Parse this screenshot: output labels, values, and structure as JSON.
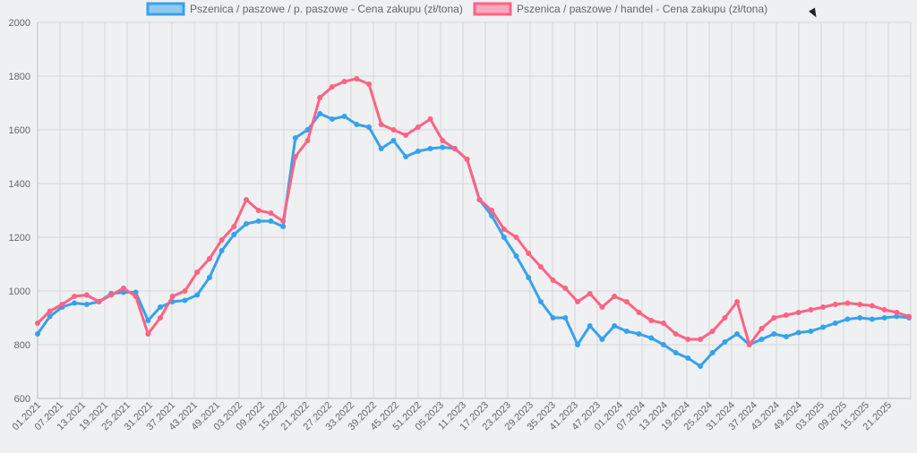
{
  "chart_data": {
    "type": "line",
    "title": "",
    "xlabel": "",
    "ylabel": "",
    "ylim": [
      600,
      2000
    ],
    "y_ticks": [
      600,
      800,
      1000,
      1200,
      1400,
      1600,
      1800,
      2000
    ],
    "x_ticks": [
      "01.2021",
      "07.2021",
      "13.2021",
      "19.2021",
      "25.2021",
      "31.2021",
      "37.2021",
      "43.2021",
      "49.2021",
      "03.2022",
      "09.2022",
      "15.2022",
      "21.2022",
      "27.2022",
      "33.2022",
      "39.2022",
      "45.2022",
      "51.2022",
      "05.2023",
      "11.2023",
      "17.2023",
      "23.2023",
      "29.2023",
      "35.2023",
      "41.2023",
      "47.2023",
      "01.2024",
      "07.2024",
      "13.2024",
      "19.2024",
      "25.2024",
      "31.2024",
      "37.2024",
      "43.2024",
      "49.2024",
      "03.2025",
      "09.2025",
      "15.2025",
      "21.2025"
    ],
    "grid": true,
    "legend_position": "top",
    "series": [
      {
        "name": "Pszenica / paszowe / p. paszowe - Cena zakupu (zł/tona)",
        "color": "#36a2eb",
        "values": [
          840,
          905,
          940,
          955,
          950,
          960,
          990,
          995,
          995,
          890,
          940,
          960,
          965,
          985,
          1050,
          1150,
          1210,
          1250,
          1260,
          1260,
          1240,
          1570,
          1600,
          1660,
          1640,
          1650,
          1620,
          1610,
          1530,
          1560,
          1500,
          1520,
          1530,
          1535,
          1530,
          1490,
          1340,
          1280,
          1200,
          1130,
          1050,
          960,
          900,
          900,
          800,
          870,
          820,
          870,
          850,
          840,
          825,
          800,
          770,
          750,
          720,
          770,
          810,
          840,
          800,
          820,
          840,
          830,
          845,
          850,
          865,
          880,
          895,
          900,
          895,
          900,
          905,
          900
        ]
      },
      {
        "name": "Pszenica / paszowe / handel - Cena zakupu (zł/tona)",
        "color": "#ff6384",
        "values": [
          880,
          925,
          950,
          980,
          985,
          960,
          985,
          1010,
          980,
          840,
          900,
          980,
          1000,
          1070,
          1120,
          1190,
          1240,
          1340,
          1300,
          1290,
          1260,
          1500,
          1560,
          1720,
          1760,
          1780,
          1790,
          1770,
          1620,
          1600,
          1580,
          1610,
          1640,
          1560,
          1530,
          1490,
          1340,
          1300,
          1230,
          1200,
          1140,
          1090,
          1040,
          1010,
          960,
          990,
          940,
          980,
          960,
          920,
          890,
          880,
          840,
          820,
          820,
          850,
          900,
          960,
          800,
          860,
          900,
          910,
          920,
          930,
          940,
          950,
          955,
          950,
          945,
          930,
          920,
          905
        ]
      }
    ]
  }
}
